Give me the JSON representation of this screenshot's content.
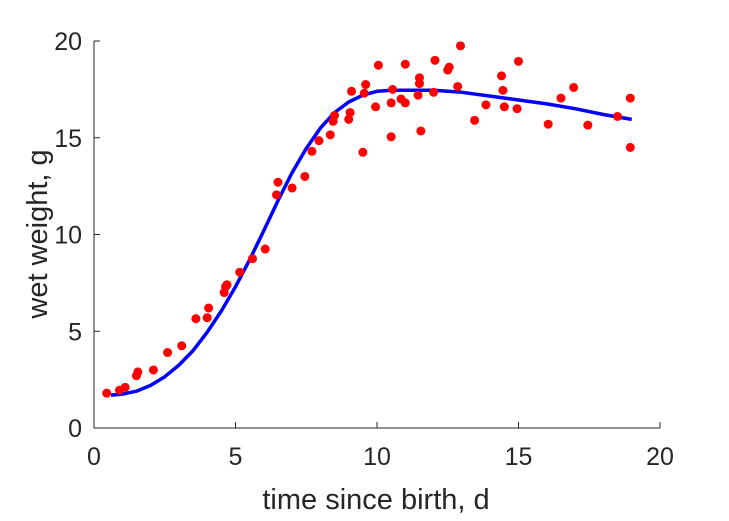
{
  "chart_data": {
    "type": "scatter",
    "xlabel": "time since birth, d",
    "ylabel": "wet weight, g",
    "xlim": [
      0,
      20
    ],
    "ylim": [
      0,
      20
    ],
    "xticks": [
      "0",
      "5",
      "10",
      "15",
      "20"
    ],
    "yticks": [
      "0",
      "5",
      "10",
      "15",
      "20"
    ],
    "grid": false,
    "box": false,
    "colors": {
      "points": "#ff0000",
      "curve": "#0000ff",
      "axes": "#262626"
    },
    "series": [
      {
        "kind": "points",
        "x": [
          0.45,
          0.9,
          1.1,
          1.5,
          1.55,
          2.1,
          2.6,
          3.1,
          3.6,
          4.0,
          4.05,
          4.6,
          4.65,
          4.7,
          5.15,
          5.6,
          6.05,
          6.45,
          6.5,
          7.0,
          7.45,
          7.7,
          7.95,
          8.35,
          8.45,
          8.5,
          9.0,
          9.05,
          9.1,
          9.5,
          9.55,
          9.6,
          9.95,
          10.05,
          10.5,
          10.5,
          10.55,
          10.85,
          11.0,
          11.0,
          11.45,
          11.5,
          11.5,
          11.55,
          12.0,
          12.05,
          12.5,
          12.55,
          12.85,
          12.95,
          13.45,
          13.85,
          14.4,
          14.45,
          14.5,
          14.95,
          15.0,
          16.05,
          16.5,
          16.95,
          17.45,
          18.5,
          18.95,
          18.95
        ],
        "y": [
          1.8,
          1.95,
          2.1,
          2.7,
          2.9,
          3.0,
          3.9,
          4.25,
          5.65,
          5.7,
          6.2,
          7.0,
          7.3,
          7.4,
          8.05,
          8.75,
          9.25,
          12.05,
          12.7,
          12.4,
          13.0,
          14.3,
          14.85,
          15.15,
          15.85,
          16.15,
          15.95,
          16.3,
          17.4,
          14.25,
          17.3,
          17.75,
          16.6,
          18.75,
          15.05,
          16.8,
          17.5,
          17.0,
          18.8,
          16.8,
          17.2,
          18.1,
          17.8,
          15.35,
          17.35,
          19.0,
          18.5,
          18.65,
          17.65,
          19.75,
          15.9,
          16.7,
          18.2,
          17.45,
          16.6,
          16.5,
          18.95,
          15.7,
          17.05,
          17.6,
          15.65,
          16.1,
          14.5,
          17.05
        ]
      },
      {
        "kind": "curve",
        "x": [
          0.6,
          1.0,
          1.5,
          2.0,
          2.5,
          3.0,
          3.5,
          4.0,
          4.5,
          5.0,
          5.5,
          6.0,
          6.5,
          7.0,
          7.5,
          8.0,
          8.5,
          9.0,
          9.5,
          10.0,
          10.5,
          11.0,
          11.5,
          12.0,
          12.5,
          13.0,
          14.0,
          15.0,
          16.0,
          17.0,
          18.0,
          19.0
        ],
        "y": [
          1.7,
          1.75,
          1.9,
          2.2,
          2.65,
          3.25,
          4.0,
          4.95,
          6.05,
          7.3,
          8.7,
          10.2,
          11.75,
          13.2,
          14.45,
          15.5,
          16.3,
          16.85,
          17.2,
          17.4,
          17.45,
          17.45,
          17.45,
          17.45,
          17.4,
          17.35,
          17.15,
          16.95,
          16.75,
          16.5,
          16.2,
          15.95
        ]
      }
    ]
  }
}
